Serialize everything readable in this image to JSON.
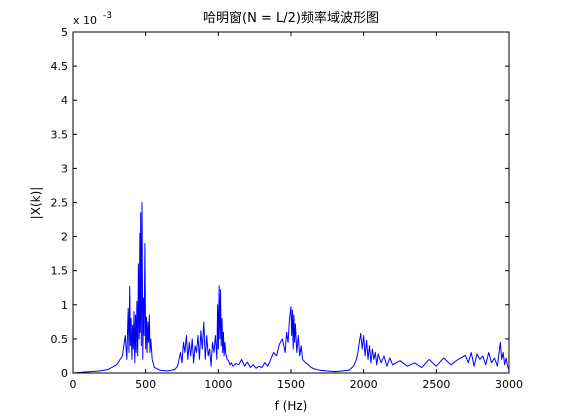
{
  "chart_data": {
    "type": "line",
    "title": "哈明窗(N = L/2)频率域波形图",
    "xlabel": "f (Hz)",
    "ylabel": "|X(k)|",
    "y_exponent_label": "x 10",
    "y_exponent_power": "-3",
    "xlim": [
      0,
      3000
    ],
    "ylim": [
      0,
      5
    ],
    "x_ticks": [
      0,
      500,
      1000,
      1500,
      2000,
      2500,
      3000
    ],
    "y_ticks": [
      0,
      0.5,
      1,
      1.5,
      2,
      2.5,
      3,
      3.5,
      4,
      4.5,
      5
    ],
    "x_tick_labels": [
      "0",
      "500",
      "1000",
      "1500",
      "2000",
      "2500",
      "3000"
    ],
    "y_tick_labels": [
      "0",
      "0.5",
      "1",
      "1.5",
      "2",
      "2.5",
      "3",
      "3.5",
      "4",
      "4.5",
      "5"
    ],
    "grid": false,
    "line_color": "#0000ff",
    "series": [
      {
        "x": [
          0,
          60,
          120,
          180,
          240,
          300,
          340,
          360,
          370,
          380,
          385,
          390,
          395,
          400,
          405,
          410,
          415,
          420,
          425,
          430,
          435,
          440,
          445,
          450,
          455,
          460,
          462,
          466,
          470,
          475,
          480,
          485,
          490,
          495,
          500,
          505,
          510,
          515,
          520,
          525,
          530,
          535,
          545,
          560,
          600,
          650,
          700,
          720,
          740,
          750,
          760,
          770,
          780,
          790,
          800,
          810,
          820,
          830,
          840,
          850,
          860,
          870,
          880,
          890,
          900,
          910,
          920,
          930,
          940,
          950,
          960,
          970,
          980,
          990,
          995,
          1000,
          1005,
          1010,
          1015,
          1020,
          1025,
          1030,
          1035,
          1040,
          1045,
          1050,
          1060,
          1070,
          1080,
          1090,
          1100,
          1120,
          1140,
          1160,
          1180,
          1200,
          1220,
          1240,
          1260,
          1280,
          1300,
          1320,
          1340,
          1360,
          1380,
          1400,
          1420,
          1440,
          1460,
          1470,
          1480,
          1490,
          1500,
          1505,
          1510,
          1515,
          1520,
          1525,
          1530,
          1540,
          1550,
          1560,
          1570,
          1580,
          1600,
          1620,
          1640,
          1660,
          1680,
          1700,
          1750,
          1800,
          1850,
          1900,
          1930,
          1950,
          1960,
          1970,
          1980,
          1990,
          2000,
          2010,
          2020,
          2030,
          2040,
          2050,
          2060,
          2070,
          2080,
          2090,
          2100,
          2120,
          2140,
          2160,
          2180,
          2200,
          2250,
          2300,
          2350,
          2400,
          2450,
          2500,
          2550,
          2600,
          2650,
          2700,
          2720,
          2740,
          2760,
          2780,
          2800,
          2820,
          2840,
          2860,
          2880,
          2900,
          2920,
          2940,
          2950,
          2960,
          2970,
          2980,
          2990,
          3000
        ],
        "y": [
          0.0,
          0.01,
          0.02,
          0.03,
          0.05,
          0.12,
          0.25,
          0.55,
          0.2,
          0.95,
          0.3,
          1.27,
          0.4,
          0.8,
          0.2,
          0.7,
          0.35,
          0.9,
          0.15,
          0.85,
          0.3,
          1.05,
          0.25,
          1.6,
          0.5,
          2.05,
          0.6,
          2.35,
          0.4,
          2.5,
          0.2,
          1.1,
          0.55,
          1.9,
          0.35,
          0.82,
          0.3,
          0.75,
          0.45,
          0.85,
          0.3,
          0.5,
          0.2,
          0.08,
          0.04,
          0.03,
          0.05,
          0.1,
          0.3,
          0.15,
          0.45,
          0.3,
          0.55,
          0.2,
          0.45,
          0.25,
          0.5,
          0.15,
          0.4,
          0.3,
          0.55,
          0.2,
          0.62,
          0.35,
          0.75,
          0.2,
          0.55,
          0.25,
          0.35,
          0.1,
          0.45,
          0.3,
          0.55,
          0.2,
          1.0,
          0.35,
          1.28,
          0.5,
          1.22,
          0.4,
          0.8,
          0.3,
          0.6,
          0.25,
          0.45,
          0.3,
          0.2,
          0.18,
          0.12,
          0.15,
          0.1,
          0.14,
          0.12,
          0.2,
          0.1,
          0.16,
          0.08,
          0.12,
          0.07,
          0.1,
          0.08,
          0.15,
          0.1,
          0.2,
          0.3,
          0.25,
          0.42,
          0.5,
          0.3,
          0.6,
          0.45,
          0.8,
          0.97,
          0.55,
          0.92,
          0.35,
          0.85,
          0.45,
          0.72,
          0.3,
          0.55,
          0.25,
          0.4,
          0.2,
          0.15,
          0.12,
          0.08,
          0.06,
          0.05,
          0.04,
          0.03,
          0.02,
          0.03,
          0.04,
          0.1,
          0.2,
          0.3,
          0.45,
          0.58,
          0.35,
          0.55,
          0.25,
          0.48,
          0.2,
          0.4,
          0.15,
          0.35,
          0.2,
          0.3,
          0.12,
          0.28,
          0.15,
          0.25,
          0.1,
          0.22,
          0.12,
          0.18,
          0.1,
          0.15,
          0.08,
          0.2,
          0.1,
          0.22,
          0.12,
          0.2,
          0.26,
          0.15,
          0.3,
          0.1,
          0.28,
          0.2,
          0.25,
          0.12,
          0.3,
          0.15,
          0.22,
          0.1,
          0.45,
          0.2,
          0.3,
          0.12,
          0.22,
          0.1,
          0.05
        ]
      }
    ]
  }
}
